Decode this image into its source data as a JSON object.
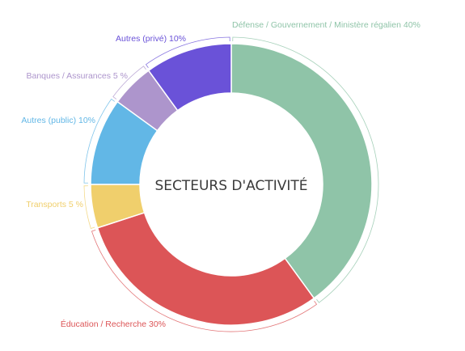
{
  "chart_data": {
    "type": "pie",
    "donut": true,
    "title": "SECTEURS D'ACTIVITÉ",
    "slices": [
      {
        "label": "Défense / Gouvernement / Ministère régalien 40%",
        "value": 40,
        "color": "#8fc4a8"
      },
      {
        "label": "Éducation / Recherche 30%",
        "value": 30,
        "color": "#dc5557"
      },
      {
        "label": "Transports 5 %",
        "value": 5,
        "color": "#f0cf6c"
      },
      {
        "label": "Autres (public) 10%",
        "value": 10,
        "color": "#62b7e6"
      },
      {
        "label": "Banques / Assurances 5 %",
        "value": 5,
        "color": "#ad95cc"
      },
      {
        "label": "Autres (privé) 10%",
        "value": 10,
        "color": "#6a52d8"
      }
    ]
  }
}
